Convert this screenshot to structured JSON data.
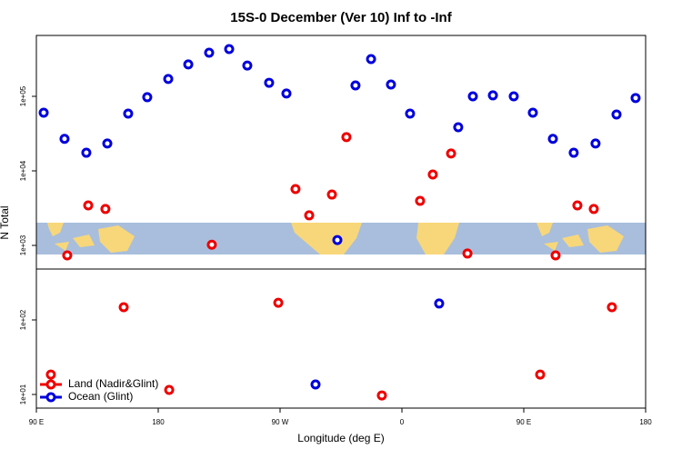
{
  "chart_data": {
    "type": "scatter",
    "title": "15S-0 December (Ver 10)   Inf to -Inf",
    "xlabel": "Longitude (deg E)",
    "ylabel": "N Total",
    "xlim": [
      90,
      540
    ],
    "xticks": [
      {
        "value": 90,
        "label": "90 E"
      },
      180,
      {
        "value": 270,
        "label": "90 W"
      },
      {
        "value": 360,
        "label": "0"
      },
      {
        "value": 450,
        "label": "90 E"
      },
      {
        "value": 540,
        "label": "180"
      }
    ],
    "ylim": [
      6.56,
      656000
    ],
    "ylog": true,
    "yticks": [
      {
        "value": 10,
        "label": "1e+01"
      },
      {
        "value": 100,
        "label": "1e+02"
      },
      {
        "value": 1000,
        "label": "1e+03"
      },
      {
        "value": 10000,
        "label": "1e+04"
      },
      {
        "value": 100000,
        "label": "1e+05"
      }
    ],
    "legend": "bottom-left",
    "series": [
      {
        "name": "Land (Nadir&Glint)",
        "color": "#ee0000",
        "x": [
          100.7,
          112.8,
          128.3,
          141.0,
          154.5,
          188.1,
          219.6,
          268.7,
          281.4,
          291.5,
          308.3,
          319.0,
          345.2,
          373.4,
          382.8,
          396.3,
          408.4,
          462.1,
          473.5,
          489.6,
          501.7,
          515.1
        ],
        "values": [
          18.5,
          734,
          3440,
          3080,
          148,
          11.5,
          1020,
          170,
          5700,
          2530,
          4810,
          28400,
          9.7,
          3960,
          8940,
          17100,
          778,
          18.5,
          734,
          3440,
          3080,
          148
        ]
      },
      {
        "name": "Ocean (Glint)",
        "color": "#0000dd",
        "x": [
          95.4,
          110.8,
          126.9,
          142.4,
          157.8,
          171.9,
          187.4,
          202.2,
          217.6,
          232.4,
          245.8,
          261.9,
          274.7,
          296.2,
          312.3,
          325.7,
          337.2,
          351.9,
          366.0,
          387.5,
          401.6,
          412.4,
          427.2,
          442.6,
          456.7,
          471.5,
          486.9,
          503.0,
          518.5,
          532.6
        ],
        "values": [
          60300,
          26900,
          17500,
          23300,
          58600,
          97400,
          171000,
          268000,
          385000,
          431000,
          259000,
          152000,
          109000,
          13.6,
          1180,
          140000,
          316000,
          144000,
          58600,
          166,
          38500,
          100000,
          103000,
          100000,
          60300,
          26900,
          17500,
          23300,
          57100,
          95000
        ]
      }
    ]
  }
}
